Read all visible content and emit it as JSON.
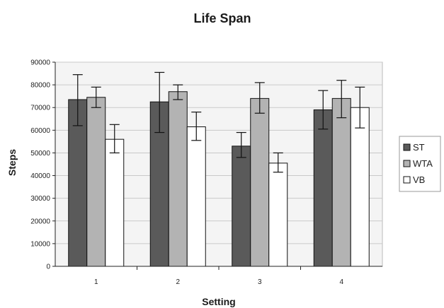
{
  "chart_data": {
    "type": "bar",
    "title": "Life Span",
    "xlabel": "Setting",
    "ylabel": "Steps",
    "categories": [
      "1",
      "2",
      "3",
      "4"
    ],
    "series": [
      {
        "name": "ST",
        "color": "#5a5a5a",
        "values": [
          73500,
          72500,
          53000,
          69000
        ],
        "error_low": [
          62000,
          59000,
          48000,
          60500
        ],
        "error_high": [
          84500,
          85500,
          59000,
          77500
        ]
      },
      {
        "name": "WTA",
        "color": "#b3b3b3",
        "values": [
          74500,
          77000,
          74000,
          74000
        ],
        "error_low": [
          70000,
          73500,
          67500,
          65500
        ],
        "error_high": [
          79000,
          80000,
          81000,
          82000
        ]
      },
      {
        "name": "VB",
        "color": "#ffffff",
        "values": [
          56000,
          61500,
          45500,
          70000
        ],
        "error_low": [
          50000,
          55500,
          41500,
          61000
        ],
        "error_high": [
          62500,
          68000,
          50000,
          79000
        ]
      }
    ],
    "ylim": [
      0,
      90000
    ],
    "yticks": [
      0,
      10000,
      20000,
      30000,
      40000,
      50000,
      60000,
      70000,
      80000,
      90000
    ],
    "grid": true,
    "legend_position": "right",
    "plot_background": "#f4f4f4"
  }
}
